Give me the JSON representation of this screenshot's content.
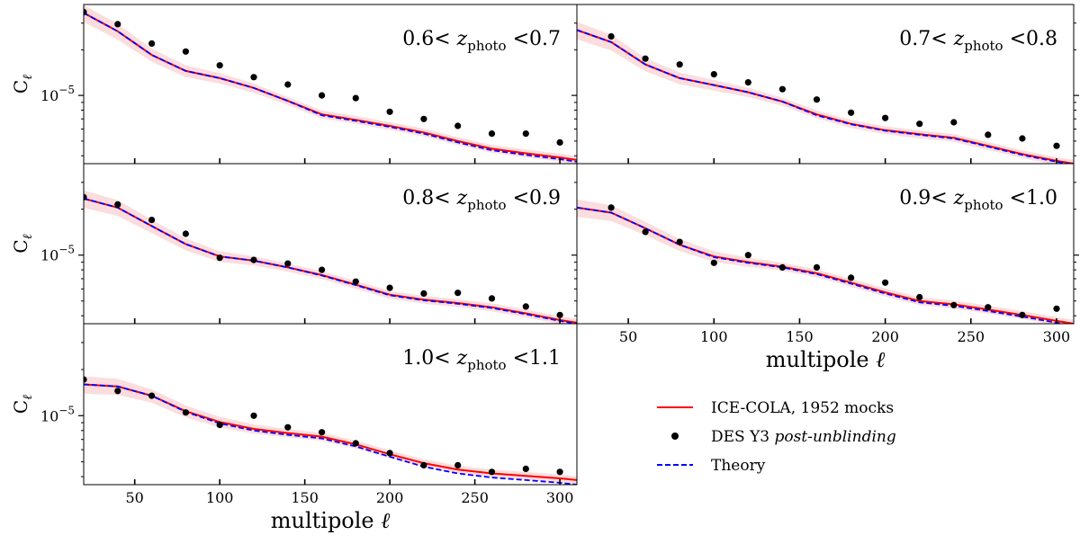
{
  "chart_data": {
    "type": "line",
    "x_axis": {
      "label": "multipole",
      "label_symbol": "ℓ",
      "range": [
        20,
        310
      ],
      "ticks": [
        50,
        100,
        150,
        200,
        250,
        300
      ]
    },
    "y_axis": {
      "label": "C",
      "label_subscript": "ℓ",
      "scale": "log",
      "range_log10": [
        -5.45,
        -4.4
      ],
      "tick_value": 1e-05,
      "tick_label_base": "10",
      "tick_label_exp": "−5"
    },
    "legend": {
      "placement": "empty bottom-right cell",
      "entries": [
        {
          "kind": "line",
          "color": "#ff0000",
          "style": "solid",
          "label": "ICE-COLA, 1952 mocks",
          "italic_part": ""
        },
        {
          "kind": "marker",
          "color": "#000000",
          "label": "DES Y3 ",
          "italic_part": "post-unblinding"
        },
        {
          "kind": "line",
          "color": "#0000ff",
          "style": "dashed",
          "label": "Theory",
          "italic_part": ""
        }
      ]
    },
    "colors": {
      "mocks": "#ff0000",
      "band": "#f9d2d2",
      "theory": "#0000ff",
      "data": "#000000"
    },
    "label_parts": {
      "z": "z",
      "sub": "photo"
    },
    "panels": [
      {
        "bin_low": "0.6",
        "bin_high": "0.7",
        "mock_x": [
          20,
          40,
          60,
          80,
          100,
          120,
          140,
          160,
          180,
          200,
          220,
          240,
          260,
          280,
          300,
          310
        ],
        "mock_y": [
          3.5e-05,
          2.65e-05,
          1.85e-05,
          1.45e-05,
          1.3e-05,
          1.12e-05,
          9.2e-06,
          7.5e-06,
          6.9e-06,
          6.3e-06,
          5.7e-06,
          5e-06,
          4.45e-06,
          4.15e-06,
          3.9e-06,
          3.75e-06
        ],
        "theory_y": [
          3.5e-05,
          2.65e-05,
          1.85e-05,
          1.45e-05,
          1.3e-05,
          1.12e-05,
          9.2e-06,
          7.4e-06,
          6.8e-06,
          6.2e-06,
          5.6e-06,
          4.9e-06,
          4.35e-06,
          4.05e-06,
          3.8e-06,
          3.65e-06
        ],
        "band_frac": [
          0.13,
          0.12,
          0.1,
          0.09,
          0.08,
          0.07,
          0.06,
          0.06,
          0.06,
          0.06,
          0.06,
          0.06,
          0.06,
          0.06,
          0.06,
          0.06
        ],
        "data_x": [
          20,
          40,
          60,
          80,
          100,
          120,
          140,
          160,
          180,
          200,
          220,
          240,
          260,
          280,
          300
        ],
        "data_y": [
          3.55e-05,
          2.95e-05,
          2.2e-05,
          1.95e-05,
          1.58e-05,
          1.32e-05,
          1.18e-05,
          1e-05,
          9.6e-06,
          7.8e-06,
          7e-06,
          6.3e-06,
          5.6e-06,
          5.6e-06,
          4.9e-06
        ]
      },
      {
        "bin_low": "0.7",
        "bin_high": "0.8",
        "mock_x": [
          20,
          40,
          60,
          80,
          100,
          120,
          140,
          160,
          180,
          200,
          220,
          240,
          260,
          280,
          300,
          310
        ],
        "mock_y": [
          2.7e-05,
          2.25e-05,
          1.6e-05,
          1.3e-05,
          1.17e-05,
          1.05e-05,
          9.1e-06,
          7.5e-06,
          6.5e-06,
          5.9e-06,
          5.55e-06,
          5.25e-06,
          4.65e-06,
          4.1e-06,
          3.7e-06,
          3.55e-06
        ],
        "theory_y": [
          2.7e-05,
          2.25e-05,
          1.6e-05,
          1.3e-05,
          1.17e-05,
          1.05e-05,
          9.1e-06,
          7.4e-06,
          6.45e-06,
          5.85e-06,
          5.5e-06,
          5.2e-06,
          4.6e-06,
          4.05e-06,
          3.65e-06,
          3.5e-06
        ],
        "band_frac": [
          0.13,
          0.12,
          0.1,
          0.09,
          0.08,
          0.07,
          0.06,
          0.06,
          0.06,
          0.06,
          0.06,
          0.06,
          0.06,
          0.06,
          0.06,
          0.06
        ],
        "data_x": [
          40,
          60,
          80,
          100,
          120,
          140,
          160,
          180,
          200,
          220,
          240,
          260,
          280,
          300
        ],
        "data_y": [
          2.45e-05,
          1.75e-05,
          1.6e-05,
          1.38e-05,
          1.22e-05,
          1.1e-05,
          9.4e-06,
          7.7e-06,
          7.1e-06,
          6.5e-06,
          6.65e-06,
          5.5e-06,
          5.2e-06,
          4.65e-06
        ]
      },
      {
        "bin_low": "0.8",
        "bin_high": "0.9",
        "mock_x": [
          20,
          40,
          60,
          80,
          100,
          120,
          140,
          160,
          180,
          200,
          220,
          240,
          260,
          280,
          300,
          310
        ],
        "mock_y": [
          2.35e-05,
          2.05e-05,
          1.55e-05,
          1.18e-05,
          9.8e-06,
          9.2e-06,
          8.3e-06,
          7.4e-06,
          6.4e-06,
          5.5e-06,
          5.1e-06,
          4.85e-06,
          4.55e-06,
          4.15e-06,
          3.75e-06,
          3.6e-06
        ],
        "theory_y": [
          2.35e-05,
          2.05e-05,
          1.55e-05,
          1.18e-05,
          9.8e-06,
          9.2e-06,
          8.3e-06,
          7.35e-06,
          6.35e-06,
          5.45e-06,
          5.05e-06,
          4.8e-06,
          4.5e-06,
          4.1e-06,
          3.7e-06,
          3.55e-06
        ],
        "band_frac": [
          0.13,
          0.12,
          0.1,
          0.09,
          0.08,
          0.07,
          0.06,
          0.06,
          0.06,
          0.06,
          0.06,
          0.06,
          0.06,
          0.06,
          0.06,
          0.06
        ],
        "data_x": [
          20,
          40,
          60,
          80,
          100,
          120,
          140,
          160,
          180,
          200,
          220,
          240,
          260,
          280,
          300
        ],
        "data_y": [
          2.4e-05,
          2.15e-05,
          1.7e-05,
          1.38e-05,
          9.6e-06,
          9.3e-06,
          8.8e-06,
          8e-06,
          6.7e-06,
          6.1e-06,
          5.6e-06,
          5.65e-06,
          5.2e-06,
          4.6e-06,
          4.05e-06
        ]
      },
      {
        "bin_low": "0.9",
        "bin_high": "1.0",
        "mock_x": [
          20,
          40,
          60,
          80,
          100,
          120,
          140,
          160,
          180,
          200,
          220,
          240,
          260,
          280,
          300,
          310
        ],
        "mock_y": [
          2.05e-05,
          1.9e-05,
          1.5e-05,
          1.17e-05,
          9.8e-06,
          9e-06,
          8.4e-06,
          7.6e-06,
          6.6e-06,
          5.7e-06,
          5e-06,
          4.75e-06,
          4.4e-06,
          4.05e-06,
          3.7e-06,
          3.55e-06
        ],
        "theory_y": [
          2.05e-05,
          1.9e-05,
          1.5e-05,
          1.17e-05,
          9.7e-06,
          8.9e-06,
          8.3e-06,
          7.5e-06,
          6.5e-06,
          5.6e-06,
          4.9e-06,
          4.65e-06,
          4.3e-06,
          3.95e-06,
          3.6e-06,
          3.45e-06
        ],
        "band_frac": [
          0.13,
          0.12,
          0.1,
          0.09,
          0.08,
          0.07,
          0.06,
          0.06,
          0.06,
          0.06,
          0.06,
          0.06,
          0.06,
          0.06,
          0.06,
          0.06
        ],
        "data_x": [
          40,
          60,
          80,
          100,
          120,
          140,
          160,
          180,
          200,
          220,
          240,
          260,
          280,
          300
        ],
        "data_y": [
          2.05e-05,
          1.42e-05,
          1.22e-05,
          8.9e-06,
          1e-05,
          8.3e-06,
          8.3e-06,
          7.1e-06,
          6.6e-06,
          5.3e-06,
          4.7e-06,
          4.55e-06,
          4.05e-06,
          4.45e-06
        ]
      },
      {
        "bin_low": "1.0",
        "bin_high": "1.1",
        "mock_x": [
          20,
          40,
          60,
          80,
          100,
          120,
          140,
          160,
          180,
          200,
          220,
          240,
          260,
          280,
          300,
          310
        ],
        "mock_y": [
          1.6e-05,
          1.55e-05,
          1.35e-05,
          1.07e-05,
          9.1e-06,
          8.2e-06,
          7.7e-06,
          7.3e-06,
          6.5e-06,
          5.6e-06,
          4.9e-06,
          4.45e-06,
          4.2e-06,
          4.05e-06,
          3.9e-06,
          3.8e-06
        ],
        "theory_y": [
          1.6e-05,
          1.55e-05,
          1.35e-05,
          1.06e-05,
          8.9e-06,
          8e-06,
          7.5e-06,
          7.1e-06,
          6.3e-06,
          5.4e-06,
          4.65e-06,
          4.2e-06,
          3.95e-06,
          3.8e-06,
          3.65e-06,
          3.55e-06
        ],
        "band_frac": [
          0.13,
          0.12,
          0.1,
          0.09,
          0.08,
          0.07,
          0.06,
          0.06,
          0.06,
          0.06,
          0.06,
          0.06,
          0.06,
          0.06,
          0.06,
          0.06
        ],
        "data_x": [
          20,
          40,
          60,
          80,
          100,
          120,
          140,
          160,
          180,
          200,
          220,
          240,
          260,
          280,
          300
        ],
        "data_y": [
          1.72e-05,
          1.45e-05,
          1.35e-05,
          1.05e-05,
          8.7e-06,
          1e-05,
          8.4e-06,
          7.8e-06,
          6.6e-06,
          5.7e-06,
          4.75e-06,
          4.75e-06,
          4.3e-06,
          4.5e-06,
          4.3e-06
        ]
      }
    ]
  }
}
